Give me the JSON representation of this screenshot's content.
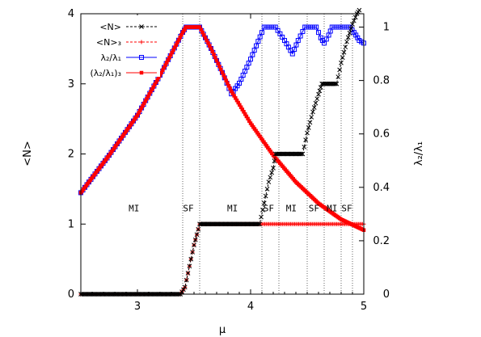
{
  "chart_data": {
    "type": "line",
    "xlabel": "μ",
    "ylabel_left": "<N>",
    "ylabel_right": "λ₂/λ₁",
    "xlim": [
      2.5,
      5.0
    ],
    "ylim_left": [
      0,
      4.0
    ],
    "ylim_right": [
      0,
      1.05
    ],
    "x_ticks": [
      3,
      4,
      5
    ],
    "y_left_ticks": [
      0,
      1,
      2,
      3,
      4
    ],
    "y_right_ticks": [
      0,
      0.2,
      0.4,
      0.6,
      0.8,
      1
    ],
    "y_right_tick_labels": [
      "0",
      "0.2",
      "0.4",
      "0.6",
      "0.8",
      "1"
    ],
    "phase_boundaries": [
      3.4,
      3.55,
      4.1,
      4.25,
      4.5,
      4.65,
      4.8,
      4.9
    ],
    "phase_labels": [
      {
        "text": "MI",
        "x": 2.97
      },
      {
        "text": "SF",
        "x": 3.45
      },
      {
        "text": "MI",
        "x": 3.84
      },
      {
        "text": "SF",
        "x": 4.16
      },
      {
        "text": "MI",
        "x": 4.36
      },
      {
        "text": "SF",
        "x": 4.56
      },
      {
        "text": "MI",
        "x": 4.72
      },
      {
        "text": "SF",
        "x": 4.85
      }
    ],
    "legend_position": "top-left",
    "series": [
      {
        "name": "<N>",
        "axis": "left",
        "color": "#000000",
        "dash": true,
        "marker": "x",
        "points": [
          [
            2.5,
            0
          ],
          [
            3.38,
            0
          ],
          [
            3.42,
            0.1
          ],
          [
            3.46,
            0.4
          ],
          [
            3.5,
            0.7
          ],
          [
            3.55,
            1.0
          ],
          [
            4.08,
            1.0
          ],
          [
            4.12,
            1.3
          ],
          [
            4.16,
            1.6
          ],
          [
            4.2,
            1.8
          ],
          [
            4.22,
            2.0
          ],
          [
            4.46,
            2.0
          ],
          [
            4.5,
            2.3
          ],
          [
            4.55,
            2.6
          ],
          [
            4.6,
            2.85
          ],
          [
            4.63,
            3.0
          ],
          [
            4.76,
            3.0
          ],
          [
            4.8,
            3.3
          ],
          [
            4.85,
            3.6
          ],
          [
            4.9,
            3.85
          ],
          [
            4.94,
            4.0
          ],
          [
            4.96,
            4.05
          ]
        ]
      },
      {
        "name": "<N>₃",
        "axis": "left",
        "color": "#ff0000",
        "dash": true,
        "marker": "plus",
        "points": [
          [
            2.5,
            0
          ],
          [
            3.38,
            0
          ],
          [
            3.42,
            0.1
          ],
          [
            3.46,
            0.4
          ],
          [
            3.5,
            0.7
          ],
          [
            3.55,
            1.0
          ],
          [
            5.0,
            1.0
          ]
        ]
      },
      {
        "name": "λ₂/λ₁",
        "axis": "right",
        "color": "#0000ff",
        "dash": false,
        "marker": "square",
        "points": [
          [
            2.5,
            0.38
          ],
          [
            2.75,
            0.52
          ],
          [
            3.0,
            0.67
          ],
          [
            3.2,
            0.82
          ],
          [
            3.4,
            0.98
          ],
          [
            3.43,
            1.0
          ],
          [
            3.55,
            1.0
          ],
          [
            3.65,
            0.92
          ],
          [
            3.75,
            0.83
          ],
          [
            3.83,
            0.75
          ],
          [
            3.9,
            0.79
          ],
          [
            4.0,
            0.88
          ],
          [
            4.1,
            0.98
          ],
          [
            4.12,
            1.0
          ],
          [
            4.22,
            1.0
          ],
          [
            4.3,
            0.95
          ],
          [
            4.37,
            0.9
          ],
          [
            4.42,
            0.95
          ],
          [
            4.48,
            1.0
          ],
          [
            4.58,
            1.0
          ],
          [
            4.62,
            0.96
          ],
          [
            4.65,
            0.94
          ],
          [
            4.69,
            0.97
          ],
          [
            4.72,
            1.0
          ],
          [
            4.88,
            1.0
          ],
          [
            4.93,
            0.97
          ],
          [
            4.96,
            0.95
          ],
          [
            5.0,
            0.94
          ]
        ]
      },
      {
        "name": "(λ₂/λ₁)₃",
        "axis": "right",
        "color": "#ff0000",
        "dash": false,
        "marker": "square-filled",
        "points": [
          [
            2.5,
            0.38
          ],
          [
            2.75,
            0.52
          ],
          [
            3.0,
            0.67
          ],
          [
            3.2,
            0.82
          ],
          [
            3.4,
            0.98
          ],
          [
            3.43,
            1.0
          ],
          [
            3.55,
            1.0
          ],
          [
            3.65,
            0.92
          ],
          [
            3.75,
            0.83
          ],
          [
            3.83,
            0.76
          ],
          [
            4.0,
            0.64
          ],
          [
            4.2,
            0.52
          ],
          [
            4.4,
            0.42
          ],
          [
            4.6,
            0.34
          ],
          [
            4.8,
            0.28
          ],
          [
            5.0,
            0.24
          ]
        ]
      }
    ]
  }
}
